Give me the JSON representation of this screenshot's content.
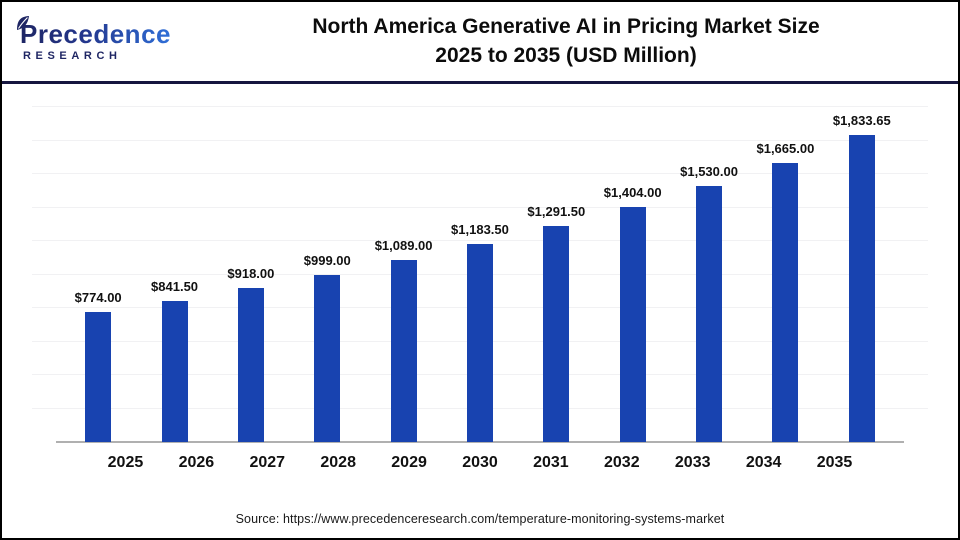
{
  "header": {
    "logo": {
      "brand": "Precedence",
      "sub": "RESEARCH",
      "navy": "#1e2563",
      "blue": "#2f6fd8"
    },
    "title_line1": "North America Generative AI in Pricing Market Size",
    "title_line2": "2025 to 2035 (USD Million)"
  },
  "chart_data": {
    "type": "bar",
    "title": "North America Generative AI in Pricing Market Size 2025 to 2035 (USD Million)",
    "unit": "USD Million",
    "categories": [
      "2025",
      "2026",
      "2027",
      "2028",
      "2029",
      "2030",
      "2031",
      "2032",
      "2033",
      "2034",
      "2035"
    ],
    "values": [
      774.0,
      841.5,
      918.0,
      999.0,
      1089.0,
      1183.5,
      1291.5,
      1404.0,
      1530.0,
      1665.0,
      1833.65
    ],
    "labels": [
      "$774.00",
      "$841.50",
      "$918.00",
      "$999.00",
      "$1,089.00",
      "$1,183.50",
      "$1,291.50",
      "$1,404.00",
      "$1,530.00",
      "$1,665.00",
      "$1,833.65"
    ],
    "xlabel": "",
    "ylabel": "",
    "ylim": [
      0,
      2000
    ],
    "gridline_step": 200,
    "grid": "on",
    "legend": "none",
    "bar_color": "#1843b0",
    "axis_color": "#b0b0b0",
    "gridline_color": "#f1f1f3"
  },
  "footer": {
    "source": "Source: https://www.precedenceresearch.com/temperature-monitoring-systems-market"
  }
}
